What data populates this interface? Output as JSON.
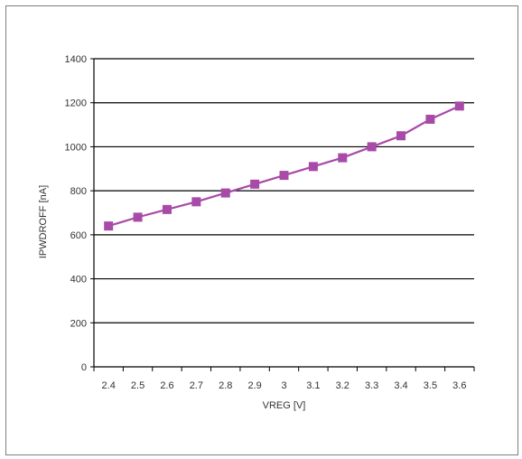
{
  "chart_data": {
    "type": "line",
    "title": "",
    "xlabel": "VREG [V]",
    "ylabel": "IPWDROFF [nA]",
    "categories": [
      "2.4",
      "2.5",
      "2.6",
      "2.7",
      "2.8",
      "2.9",
      "3",
      "3.1",
      "3.2",
      "3.3",
      "3.4",
      "3.5",
      "3.6"
    ],
    "series": [
      {
        "values": [
          640,
          680,
          715,
          750,
          790,
          830,
          870,
          910,
          950,
          1000,
          1050,
          1125,
          1185
        ],
        "color": "#a84aa8",
        "marker": "square"
      }
    ],
    "ylim": [
      0,
      1400
    ],
    "yticks": [
      0,
      200,
      400,
      600,
      800,
      1000,
      1200,
      1400
    ],
    "grid": "horizontal",
    "legend": "none"
  }
}
